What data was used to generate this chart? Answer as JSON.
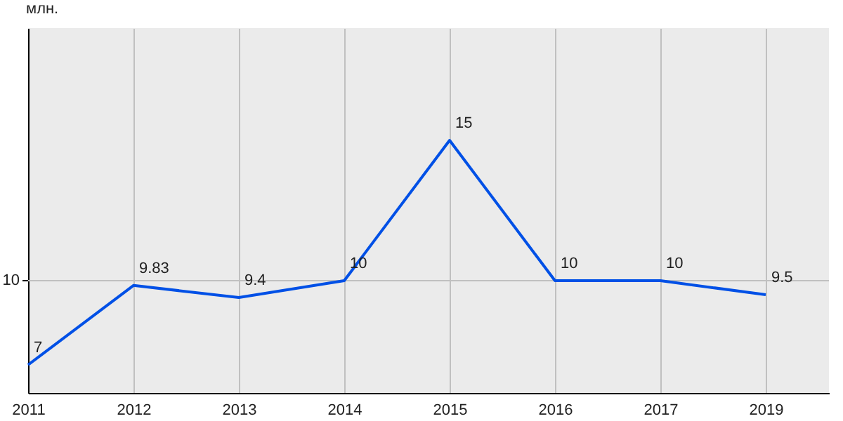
{
  "chart_data": {
    "type": "line",
    "ylabel": "млн.",
    "categories": [
      "2011",
      "2012",
      "2013",
      "2014",
      "2015",
      "2016",
      "2017",
      "2019"
    ],
    "series": [
      {
        "color": "#0050e6",
        "values": [
          7,
          9.83,
          9.4,
          10,
          15,
          10,
          10,
          9.5
        ]
      }
    ],
    "ylim": [
      6,
      19
    ],
    "ref_lines": [
      {
        "axis": "y",
        "value": 10,
        "label": "10",
        "color": "#c0c0c0"
      }
    ],
    "grid": "x",
    "data_labels": true,
    "marker": "none",
    "line_style": "solid"
  }
}
